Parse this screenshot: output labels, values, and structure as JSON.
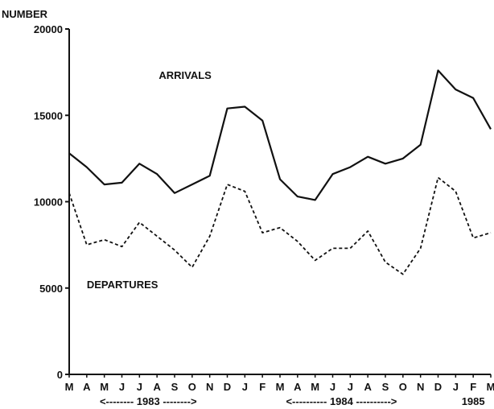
{
  "chart_data": {
    "type": "line",
    "title": "",
    "ylabel": "NUMBER",
    "xlabel": "",
    "ylim": [
      0,
      20000
    ],
    "y_ticks": [
      0,
      5000,
      10000,
      15000,
      20000
    ],
    "x_categories": [
      "M",
      "A",
      "M",
      "J",
      "J",
      "A",
      "S",
      "O",
      "N",
      "D",
      "J",
      "F",
      "M",
      "A",
      "M",
      "J",
      "J",
      "A",
      "S",
      "O",
      "N",
      "D",
      "J",
      "F",
      "M"
    ],
    "year_labels": [
      {
        "label": "<-------- 1983 -------->",
        "from_index": 0,
        "to_index": 9
      },
      {
        "label": "<---------- 1984 ---------->",
        "from_index": 10,
        "to_index": 21
      },
      {
        "label": "1985",
        "from_index": 22,
        "to_index": 24
      }
    ],
    "grid": false,
    "series": [
      {
        "name": "ARRIVALS",
        "style": "solid",
        "values": [
          12800,
          12000,
          11000,
          11100,
          12200,
          11600,
          10500,
          11000,
          11500,
          15400,
          15500,
          14700,
          11300,
          10300,
          10100,
          11600,
          12000,
          12600,
          12200,
          12500,
          13300,
          17600,
          16500,
          16000,
          14200
        ]
      },
      {
        "name": "DEPARTURES",
        "style": "dashed",
        "values": [
          10500,
          7500,
          7800,
          7400,
          8800,
          8000,
          7200,
          6200,
          8000,
          11000,
          10600,
          8200,
          8500,
          7700,
          6600,
          7300,
          7300,
          8300,
          6500,
          5800,
          7300,
          11400,
          10600,
          7900,
          8200
        ]
      }
    ]
  },
  "colors": {
    "axis": "#111111",
    "arrivals": "#111111",
    "departures": "#111111"
  }
}
